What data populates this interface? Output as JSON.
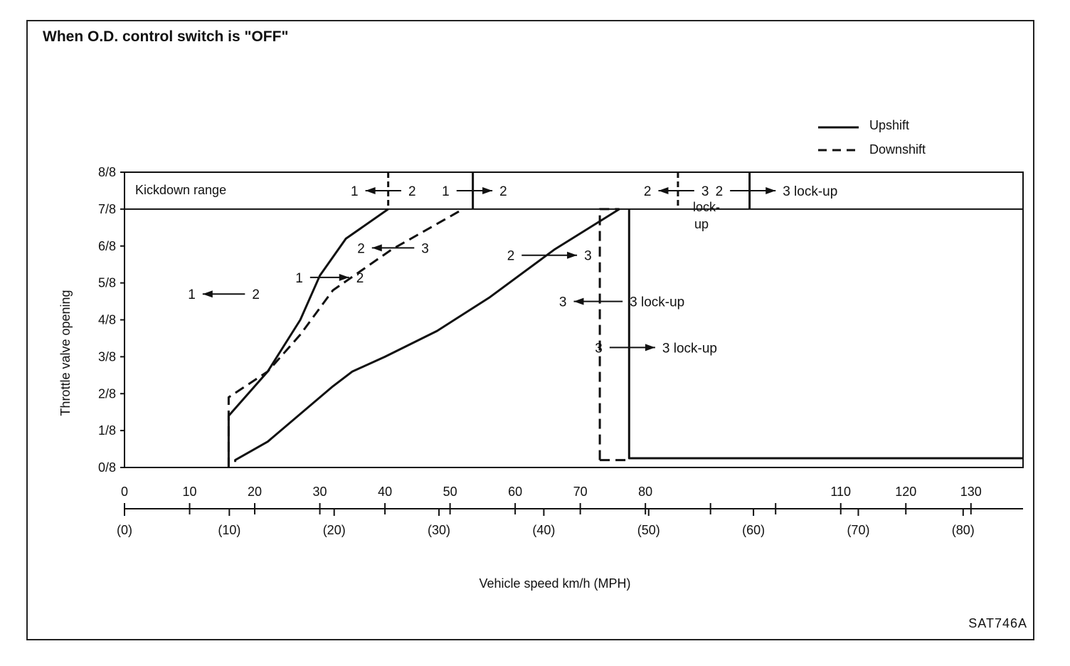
{
  "title": "When O.D. control switch is \"OFF\"",
  "figure_code": "SAT746A",
  "chart_data": {
    "type": "line",
    "title": "When O.D. control switch is \"OFF\"",
    "xlabel": "Vehicle speed  km/h (MPH)",
    "ylabel": "Throttle valve opening",
    "xlim": [
      0,
      138
    ],
    "ylim": [
      0,
      8
    ],
    "y_ticks": [
      {
        "v": 0,
        "label": "0/8"
      },
      {
        "v": 1,
        "label": "1/8"
      },
      {
        "v": 2,
        "label": "2/8"
      },
      {
        "v": 3,
        "label": "3/8"
      },
      {
        "v": 4,
        "label": "4/8"
      },
      {
        "v": 5,
        "label": "5/8"
      },
      {
        "v": 6,
        "label": "6/8"
      },
      {
        "v": 7,
        "label": "7/8"
      },
      {
        "v": 8,
        "label": "8/8"
      }
    ],
    "x_kmh_ticks": [
      {
        "v": 0,
        "label": "0"
      },
      {
        "v": 10,
        "label": "10"
      },
      {
        "v": 20,
        "label": "20"
      },
      {
        "v": 30,
        "label": "30"
      },
      {
        "v": 40,
        "label": "40"
      },
      {
        "v": 50,
        "label": "50"
      },
      {
        "v": 60,
        "label": "60"
      },
      {
        "v": 70,
        "label": "70"
      },
      {
        "v": 80,
        "label": "80"
      },
      {
        "v": 90,
        "label": ""
      },
      {
        "v": 100,
        "label": ""
      },
      {
        "v": 110,
        "label": "110"
      },
      {
        "v": 120,
        "label": "120"
      },
      {
        "v": 130,
        "label": "130"
      }
    ],
    "x_mph_ticks": [
      {
        "v": 0,
        "label": "(0)"
      },
      {
        "v": 16.1,
        "label": "(10)"
      },
      {
        "v": 32.2,
        "label": "(20)"
      },
      {
        "v": 48.3,
        "label": "(30)"
      },
      {
        "v": 64.4,
        "label": "(40)"
      },
      {
        "v": 80.5,
        "label": "(50)"
      },
      {
        "v": 96.6,
        "label": "(60)"
      },
      {
        "v": 112.7,
        "label": "(70)"
      },
      {
        "v": 128.8,
        "label": "(80)"
      }
    ],
    "legend": {
      "position": "top-right",
      "items": [
        {
          "label": "Upshift",
          "style": "solid"
        },
        {
          "label": "Downshift",
          "style": "dashed"
        }
      ]
    },
    "region_label": "Kickdown range",
    "kickdown_range": [
      7,
      8
    ],
    "series": [
      {
        "label_from": "1",
        "label_to": "2",
        "style": "solid",
        "points": [
          [
            16,
            0
          ],
          [
            16,
            1.4
          ],
          [
            22,
            2.6
          ],
          [
            27,
            4
          ],
          [
            30,
            5.2
          ],
          [
            34,
            6.2
          ],
          [
            40.5,
            7
          ]
        ]
      },
      {
        "label_from": "1",
        "label_to": "2",
        "style": "dashed",
        "points": [
          [
            16,
            0
          ],
          [
            16,
            1.9
          ],
          [
            22,
            2.6
          ],
          [
            27,
            3.6
          ],
          [
            32,
            4.8
          ],
          [
            41,
            5.9
          ],
          [
            52,
            7
          ]
        ]
      },
      {
        "label_from": "2",
        "label_to": "3",
        "style": "solid",
        "points": [
          [
            17,
            0.15
          ],
          [
            17,
            0.2
          ],
          [
            22,
            0.7
          ],
          [
            32,
            2.2
          ],
          [
            35,
            2.6
          ],
          [
            40,
            3
          ],
          [
            48,
            3.7
          ],
          [
            56,
            4.6
          ],
          [
            66,
            5.9
          ],
          [
            76,
            7
          ]
        ]
      },
      {
        "label_from": "3",
        "label_to": "3 lock-up",
        "style": "dashed",
        "points": [
          [
            73,
            0.2
          ],
          [
            73,
            7
          ],
          [
            76,
            7
          ]
        ]
      },
      {
        "label_from": "3",
        "label_to": "3 lock-up",
        "style": "solid",
        "points": [
          [
            77.5,
            7
          ],
          [
            77.5,
            0.25
          ],
          [
            138,
            0.25
          ]
        ]
      },
      {
        "label_from": "",
        "label_to": "",
        "style": "dashed",
        "points": [
          [
            73,
            0.2
          ],
          [
            77.5,
            0.2
          ]
        ]
      }
    ],
    "kickdown_markers": [
      {
        "x": 40.5,
        "style": "dashed",
        "label": "1 ← 2"
      },
      {
        "x": 53.5,
        "style": "solid",
        "label": "1 → 2"
      },
      {
        "x": 85,
        "style": "dashed",
        "label": "2 ← 3 lock-up"
      },
      {
        "x": 96,
        "style": "solid",
        "label": "2 → 3 lock-up"
      }
    ],
    "annotations": [
      {
        "text_left": "1",
        "text_right": "2",
        "dir": "left",
        "x1": 12,
        "x2": 18.5,
        "y": 4.7
      },
      {
        "text_left": "1",
        "text_right": "2",
        "dir": "right",
        "x1": 28.5,
        "x2": 34.5,
        "y": 5.15
      },
      {
        "text_left": "2",
        "text_right": "3",
        "dir": "left",
        "x1": 38,
        "x2": 44.5,
        "y": 5.95
      },
      {
        "text_left": "2",
        "text_right": "3",
        "dir": "right",
        "x1": 61,
        "x2": 69.5,
        "y": 5.75
      },
      {
        "text_left": "3",
        "text_right": "3 lock-up",
        "dir": "left",
        "x1": 69,
        "x2": 76.5,
        "y": 4.5
      },
      {
        "text_left": "3",
        "text_right": "3 lock-up",
        "dir": "right",
        "x1": 74.5,
        "x2": 81.5,
        "y": 3.25
      },
      {
        "text_left": "1",
        "text_right": "2",
        "dir": "left",
        "x1": 37,
        "x2": 42.5,
        "y": 7.5
      },
      {
        "text_left": "1",
        "text_right": "2",
        "dir": "right",
        "x1": 51,
        "x2": 56.5,
        "y": 7.5
      },
      {
        "text_left": "2",
        "text_right": "3",
        "dir": "left",
        "x1": 82,
        "x2": 87.5,
        "y": 7.5
      },
      {
        "text_left": "2",
        "text_right": "3 lock-up",
        "dir": "right",
        "x1": 93,
        "x2": 100,
        "y": 7.5
      }
    ],
    "extra_texts": [
      "lock-",
      "up"
    ]
  }
}
